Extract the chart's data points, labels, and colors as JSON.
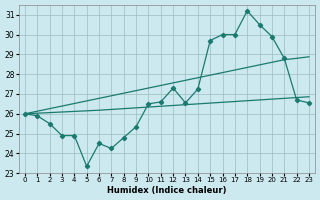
{
  "xlabel": "Humidex (Indice chaleur)",
  "bg_color": "#cce9f0",
  "line_color": "#1a7a6e",
  "xlim": [
    -0.5,
    23.5
  ],
  "ylim": [
    23,
    31.5
  ],
  "yticks": [
    23,
    24,
    25,
    26,
    27,
    28,
    29,
    30,
    31
  ],
  "xticks": [
    0,
    1,
    2,
    3,
    4,
    5,
    6,
    7,
    8,
    9,
    10,
    11,
    12,
    13,
    14,
    15,
    16,
    17,
    18,
    19,
    20,
    21,
    22,
    23
  ],
  "x": [
    0,
    1,
    2,
    3,
    4,
    5,
    6,
    7,
    8,
    9,
    10,
    11,
    12,
    13,
    14,
    15,
    16,
    17,
    18,
    19,
    20,
    21,
    22,
    23
  ],
  "y_main": [
    26.0,
    25.9,
    25.5,
    24.9,
    24.9,
    23.35,
    24.5,
    24.25,
    24.8,
    25.35,
    26.5,
    26.6,
    27.3,
    26.55,
    27.25,
    29.7,
    30.0,
    30.0,
    31.2,
    30.5,
    29.9,
    28.8,
    26.7,
    26.55
  ],
  "y_upper": [
    26.0,
    26.13,
    26.26,
    26.39,
    26.52,
    26.65,
    26.78,
    26.91,
    27.04,
    27.17,
    27.3,
    27.43,
    27.56,
    27.69,
    27.82,
    27.95,
    28.08,
    28.21,
    28.34,
    28.47,
    28.6,
    28.73,
    28.8,
    28.88
  ],
  "y_lower": [
    26.0,
    26.03,
    26.06,
    26.09,
    26.12,
    26.15,
    26.18,
    26.22,
    26.26,
    26.3,
    26.34,
    26.38,
    26.42,
    26.46,
    26.5,
    26.54,
    26.58,
    26.62,
    26.66,
    26.7,
    26.74,
    26.78,
    26.82,
    26.86
  ]
}
